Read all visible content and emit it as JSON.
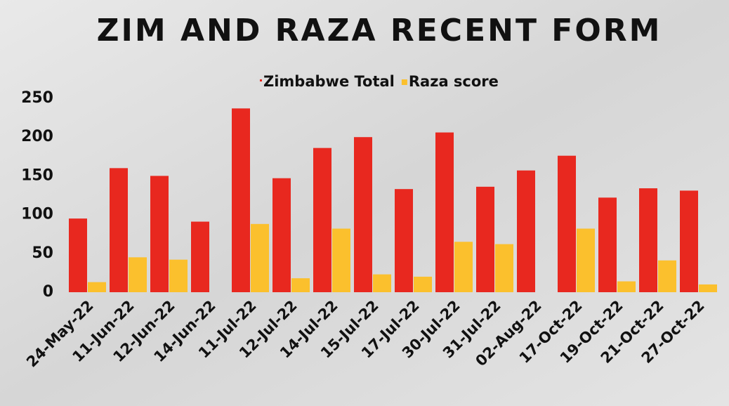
{
  "chart_data": {
    "type": "bar",
    "title": "ZIM AND RAZA RECENT FORM",
    "categories": [
      "24-May-22",
      "11-Jun-22",
      "12-Jun-22",
      "14-Jun-22",
      "11-Jul-22",
      "12-Jul-22",
      "14-Jul-22",
      "15-Jul-22",
      "17-Jul-22",
      "30-Jul-22",
      "31-Jul-22",
      "02-Aug-22",
      "17-Oct-22",
      "19-Oct-22",
      "21-Oct-22",
      "27-Oct-22"
    ],
    "series": [
      {
        "name": "Zimbabwe Total",
        "color": "#e8281f",
        "values": [
          95,
          160,
          150,
          91,
          237,
          147,
          186,
          200,
          133,
          206,
          136,
          157,
          176,
          122,
          134,
          131
        ]
      },
      {
        "name": "Raza score",
        "color": "#fbc02d",
        "values": [
          13,
          45,
          42,
          null,
          88,
          18,
          82,
          23,
          20,
          65,
          62,
          null,
          82,
          14,
          41,
          10
        ]
      }
    ],
    "ylim": [
      0,
      250
    ],
    "yticks": [
      0,
      50,
      100,
      150,
      200,
      250
    ],
    "grid": false
  }
}
